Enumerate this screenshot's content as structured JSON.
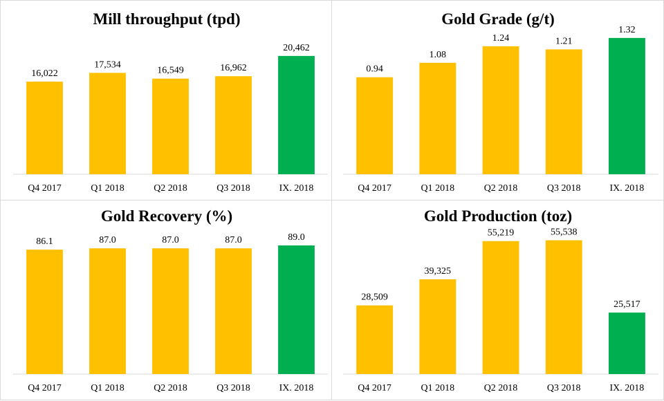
{
  "colors": {
    "standard": "#FFC000",
    "highlight": "#00B050"
  },
  "chart_data": [
    {
      "type": "bar",
      "title": "Mill throughput (tpd)",
      "categories": [
        "Q4 2017",
        "Q1 2018",
        "Q2 2018",
        "Q3 2018",
        "IX. 2018"
      ],
      "values": [
        16022,
        17534,
        16549,
        16962,
        20462
      ],
      "labels": [
        "16,022",
        "17,534",
        "16,549",
        "16,962",
        "20,462"
      ],
      "highlight_index": 4,
      "ylim": [
        0,
        25000
      ]
    },
    {
      "type": "bar",
      "title": "Gold Grade (g/t)",
      "categories": [
        "Q4 2017",
        "Q1 2018",
        "Q2 2018",
        "Q3 2018",
        "IX. 2018"
      ],
      "values": [
        0.94,
        1.08,
        1.24,
        1.21,
        1.32
      ],
      "labels": [
        "0.94",
        "1.08",
        "1.24",
        "1.21",
        "1.32"
      ],
      "highlight_index": 4,
      "ylim": [
        0,
        1.4
      ]
    },
    {
      "type": "bar",
      "title": "Gold Recovery (%)",
      "categories": [
        "Q4 2017",
        "Q1 2018",
        "Q2 2018",
        "Q3 2018",
        "IX. 2018"
      ],
      "values": [
        86.1,
        87.0,
        87.0,
        87.0,
        89.0
      ],
      "labels": [
        "86.1",
        "87.0",
        "87.0",
        "87.0",
        "89.0"
      ],
      "highlight_index": 4,
      "ylim": [
        0,
        100
      ]
    },
    {
      "type": "bar",
      "title": "Gold Production (toz)",
      "categories": [
        "Q4 2017",
        "Q1 2018",
        "Q2 2018",
        "Q3 2018",
        "IX. 2018"
      ],
      "values": [
        28509,
        39325,
        55219,
        55538,
        25517
      ],
      "labels": [
        "28,509",
        "39,325",
        "55,219",
        "55,538",
        "25,517"
      ],
      "highlight_index": 4,
      "ylim": [
        0,
        60000
      ]
    }
  ]
}
